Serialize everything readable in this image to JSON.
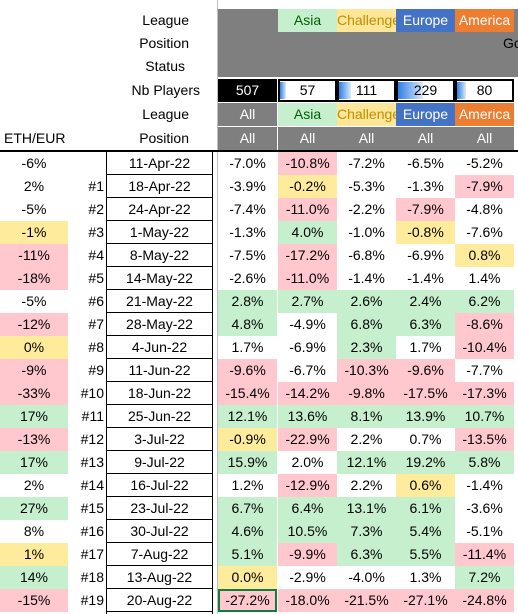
{
  "header_labels": {
    "league": "League",
    "position": "Position",
    "status": "Status",
    "nb_players": "Nb Players",
    "league2": "League",
    "position2": "Position",
    "eth_eur": "ETH/EUR"
  },
  "league_top": [
    "",
    "Asia",
    "Challenge",
    "Europe",
    "America"
  ],
  "league_colors": [
    "#7f7f7f",
    "#c6efce",
    "#ffe699",
    "#4472c4",
    "#ed7d31"
  ],
  "position_top_fragment": "Go",
  "nb_players": [
    {
      "value": "507",
      "fill": 1.0
    },
    {
      "value": "57",
      "fill": 0.11
    },
    {
      "value": "111",
      "fill": 0.22
    },
    {
      "value": "229",
      "fill": 0.45
    },
    {
      "value": "80",
      "fill": 0.16
    }
  ],
  "league_row2": [
    "All",
    "Asia",
    "Challenge",
    "Europe",
    "America"
  ],
  "position_row2": [
    "All",
    "All",
    "All",
    "All",
    "All"
  ],
  "colors": {
    "green": "#c6efce",
    "red": "#ffc7ce",
    "yellow": "#ffeb9c",
    "white": "#ffffff"
  },
  "rows": [
    {
      "eth": "-6%",
      "eth_c": "white",
      "num": "",
      "date": "11-Apr-22",
      "vals": [
        "-7.0%",
        "-10.8%",
        "-7.2%",
        "-6.5%",
        "-5.2%"
      ],
      "cols": [
        "white",
        "red",
        "white",
        "white",
        "white"
      ]
    },
    {
      "eth": "2%",
      "eth_c": "white",
      "num": "#1",
      "date": "18-Apr-22",
      "vals": [
        "-3.9%",
        "-0.2%",
        "-5.3%",
        "-1.3%",
        "-7.9%"
      ],
      "cols": [
        "white",
        "yellow",
        "white",
        "white",
        "red"
      ]
    },
    {
      "eth": "-5%",
      "eth_c": "white",
      "num": "#2",
      "date": "24-Apr-22",
      "vals": [
        "-7.4%",
        "-11.0%",
        "-2.2%",
        "-7.9%",
        "-4.8%"
      ],
      "cols": [
        "white",
        "red",
        "white",
        "red",
        "white"
      ]
    },
    {
      "eth": "-1%",
      "eth_c": "yellow",
      "num": "#3",
      "date": "1-May-22",
      "vals": [
        "-1.3%",
        "4.0%",
        "-1.0%",
        "-0.8%",
        "-7.6%"
      ],
      "cols": [
        "white",
        "green",
        "white",
        "yellow",
        "white"
      ]
    },
    {
      "eth": "-11%",
      "eth_c": "red",
      "num": "#4",
      "date": "8-May-22",
      "vals": [
        "-7.5%",
        "-17.2%",
        "-6.8%",
        "-6.9%",
        "0.8%"
      ],
      "cols": [
        "white",
        "red",
        "white",
        "white",
        "yellow"
      ]
    },
    {
      "eth": "-18%",
      "eth_c": "red",
      "num": "#5",
      "date": "14-May-22",
      "vals": [
        "-2.6%",
        "-11.0%",
        "-1.4%",
        "-1.4%",
        "1.4%"
      ],
      "cols": [
        "white",
        "red",
        "white",
        "white",
        "white"
      ]
    },
    {
      "eth": "-5%",
      "eth_c": "white",
      "num": "#6",
      "date": "21-May-22",
      "vals": [
        "2.8%",
        "2.7%",
        "2.6%",
        "2.4%",
        "6.2%"
      ],
      "cols": [
        "green",
        "green",
        "green",
        "green",
        "green"
      ]
    },
    {
      "eth": "-12%",
      "eth_c": "red",
      "num": "#7",
      "date": "28-May-22",
      "vals": [
        "4.8%",
        "-4.9%",
        "6.8%",
        "6.3%",
        "-8.6%"
      ],
      "cols": [
        "green",
        "white",
        "green",
        "green",
        "red"
      ]
    },
    {
      "eth": "0%",
      "eth_c": "yellow",
      "num": "#8",
      "date": "4-Jun-22",
      "vals": [
        "1.7%",
        "-6.9%",
        "2.3%",
        "1.7%",
        "-10.4%"
      ],
      "cols": [
        "white",
        "white",
        "green",
        "white",
        "red"
      ]
    },
    {
      "eth": "-9%",
      "eth_c": "red",
      "num": "#9",
      "date": "11-Jun-22",
      "vals": [
        "-9.6%",
        "-6.7%",
        "-10.3%",
        "-9.6%",
        "-7.7%"
      ],
      "cols": [
        "red",
        "white",
        "red",
        "red",
        "white"
      ]
    },
    {
      "eth": "-33%",
      "eth_c": "red",
      "num": "#10",
      "date": "18-Jun-22",
      "vals": [
        "-15.4%",
        "-14.2%",
        "-9.8%",
        "-17.5%",
        "-17.3%"
      ],
      "cols": [
        "red",
        "red",
        "red",
        "red",
        "red"
      ]
    },
    {
      "eth": "17%",
      "eth_c": "green",
      "num": "#11",
      "date": "25-Jun-22",
      "vals": [
        "12.1%",
        "13.6%",
        "8.1%",
        "13.9%",
        "10.7%"
      ],
      "cols": [
        "green",
        "green",
        "green",
        "green",
        "green"
      ]
    },
    {
      "eth": "-13%",
      "eth_c": "red",
      "num": "#12",
      "date": "3-Jul-22",
      "vals": [
        "-0.9%",
        "-22.9%",
        "2.2%",
        "0.7%",
        "-13.5%"
      ],
      "cols": [
        "yellow",
        "red",
        "white",
        "white",
        "red"
      ]
    },
    {
      "eth": "17%",
      "eth_c": "green",
      "num": "#13",
      "date": "9-Jul-22",
      "vals": [
        "15.9%",
        "2.0%",
        "12.1%",
        "19.2%",
        "5.8%"
      ],
      "cols": [
        "green",
        "white",
        "green",
        "green",
        "green"
      ]
    },
    {
      "eth": "2%",
      "eth_c": "white",
      "num": "#14",
      "date": "16-Jul-22",
      "vals": [
        "1.2%",
        "-12.9%",
        "2.2%",
        "0.6%",
        "-1.4%"
      ],
      "cols": [
        "white",
        "red",
        "white",
        "yellow",
        "white"
      ]
    },
    {
      "eth": "27%",
      "eth_c": "green",
      "num": "#15",
      "date": "23-Jul-22",
      "vals": [
        "6.7%",
        "6.4%",
        "13.1%",
        "6.1%",
        "-3.6%"
      ],
      "cols": [
        "green",
        "green",
        "green",
        "green",
        "white"
      ]
    },
    {
      "eth": "8%",
      "eth_c": "white",
      "num": "#16",
      "date": "30-Jul-22",
      "vals": [
        "4.6%",
        "10.5%",
        "7.3%",
        "5.4%",
        "-5.1%"
      ],
      "cols": [
        "green",
        "green",
        "green",
        "green",
        "white"
      ]
    },
    {
      "eth": "1%",
      "eth_c": "yellow",
      "num": "#17",
      "date": "7-Aug-22",
      "vals": [
        "5.1%",
        "-9.9%",
        "6.3%",
        "5.5%",
        "-11.4%"
      ],
      "cols": [
        "green",
        "red",
        "green",
        "green",
        "red"
      ]
    },
    {
      "eth": "14%",
      "eth_c": "green",
      "num": "#18",
      "date": "13-Aug-22",
      "vals": [
        "0.0%",
        "-2.9%",
        "-4.0%",
        "1.3%",
        "7.2%"
      ],
      "cols": [
        "yellow",
        "white",
        "white",
        "white",
        "green"
      ]
    },
    {
      "eth": "-15%",
      "eth_c": "red",
      "num": "#19",
      "date": "20-Aug-22",
      "vals": [
        "-27.2%",
        "-18.0%",
        "-21.5%",
        "-27.1%",
        "-24.8%"
      ],
      "cols": [
        "red",
        "red",
        "red",
        "red",
        "red"
      ]
    }
  ]
}
